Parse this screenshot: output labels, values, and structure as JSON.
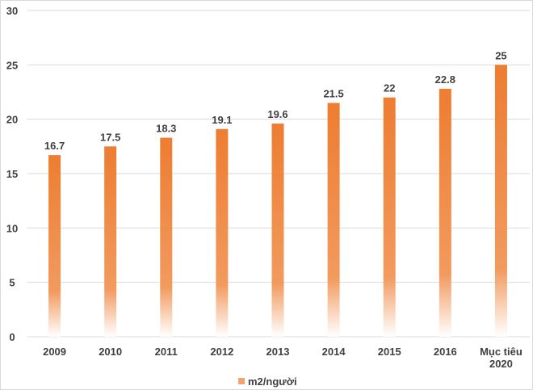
{
  "chart_data": {
    "type": "bar",
    "title": "",
    "xlabel": "",
    "ylabel": "",
    "categories": [
      "2009",
      "2010",
      "2011",
      "2012",
      "2013",
      "2014",
      "2015",
      "2016",
      "Mục tiêu 2020"
    ],
    "series": [
      {
        "name": "m2/người",
        "values": [
          16.7,
          17.5,
          18.3,
          19.1,
          19.6,
          21.5,
          22,
          22.8,
          25
        ],
        "color": "#ED7D31"
      }
    ],
    "ylim": [
      0,
      30
    ],
    "yticks": [
      0,
      5,
      10,
      15,
      20,
      25,
      30
    ],
    "grid": true,
    "legend": "bottom-center",
    "data_labels": [
      "16.7",
      "17.5",
      "18.3",
      "19.1",
      "19.6",
      "21.5",
      "22",
      "22.8",
      "25"
    ]
  }
}
